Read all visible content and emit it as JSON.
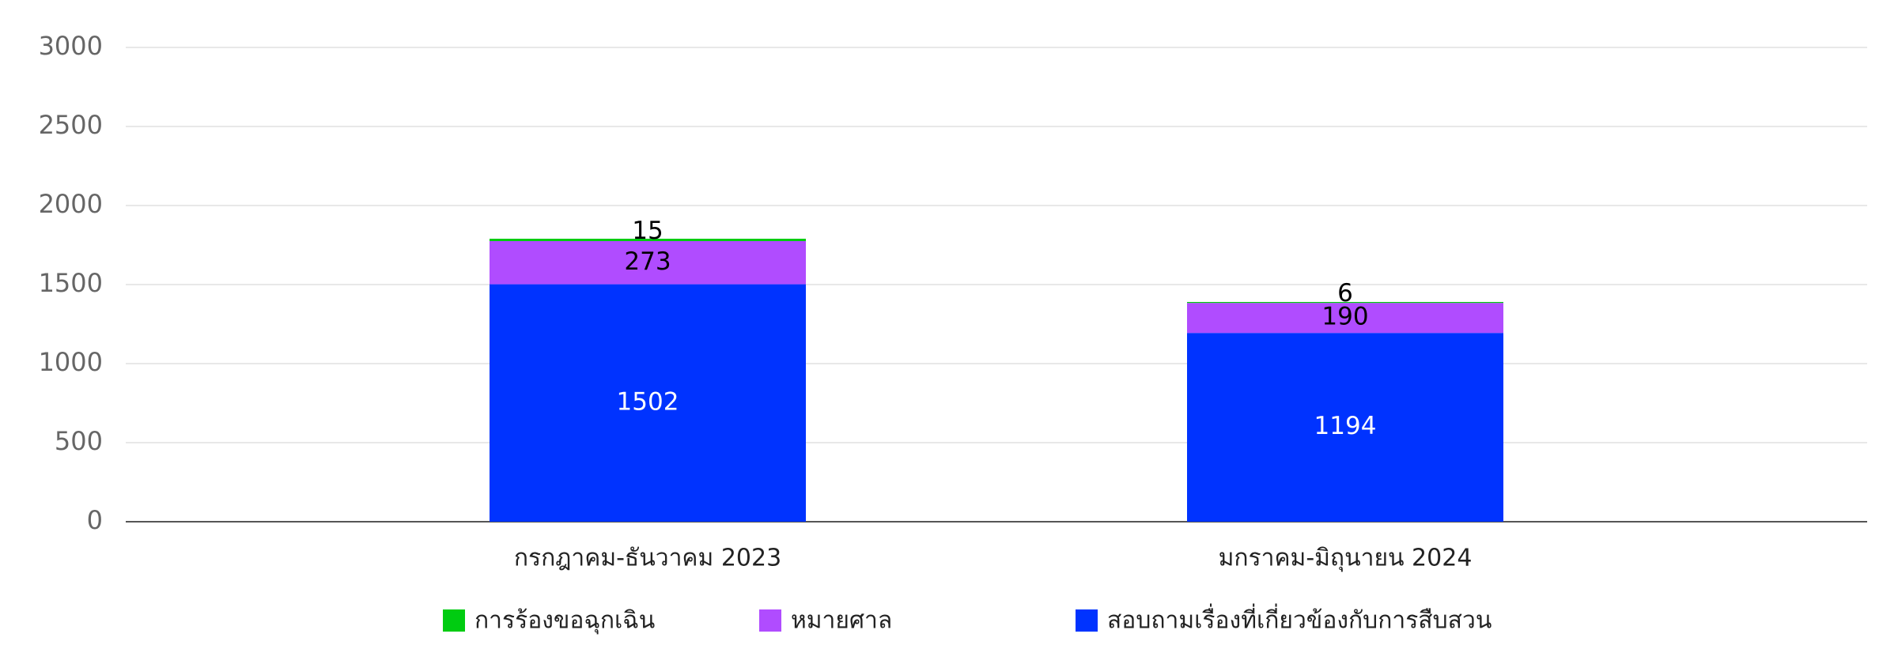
{
  "chart_data": {
    "type": "stacked_bar",
    "categories": [
      "กรกฎาคม-ธันวาคม 2023",
      "มกราคม-มิถุนายน 2024"
    ],
    "series": [
      {
        "name": "การร้องขอฉุกเฉิน",
        "color": "#00cc11",
        "values": [
          15,
          6
        ]
      },
      {
        "name": "หมายศาล",
        "color": "#b04cff",
        "values": [
          273,
          190
        ]
      },
      {
        "name": "สอบถามเรื่องที่เกี่ยวข้องกับการสืบสวน",
        "color": "#0033ff",
        "values": [
          1502,
          1194
        ]
      }
    ],
    "ylim": [
      0,
      3000
    ],
    "yticks": [
      0,
      500,
      1000,
      1500,
      2000,
      2500,
      3000
    ],
    "grid": true,
    "legend": "bottom"
  }
}
